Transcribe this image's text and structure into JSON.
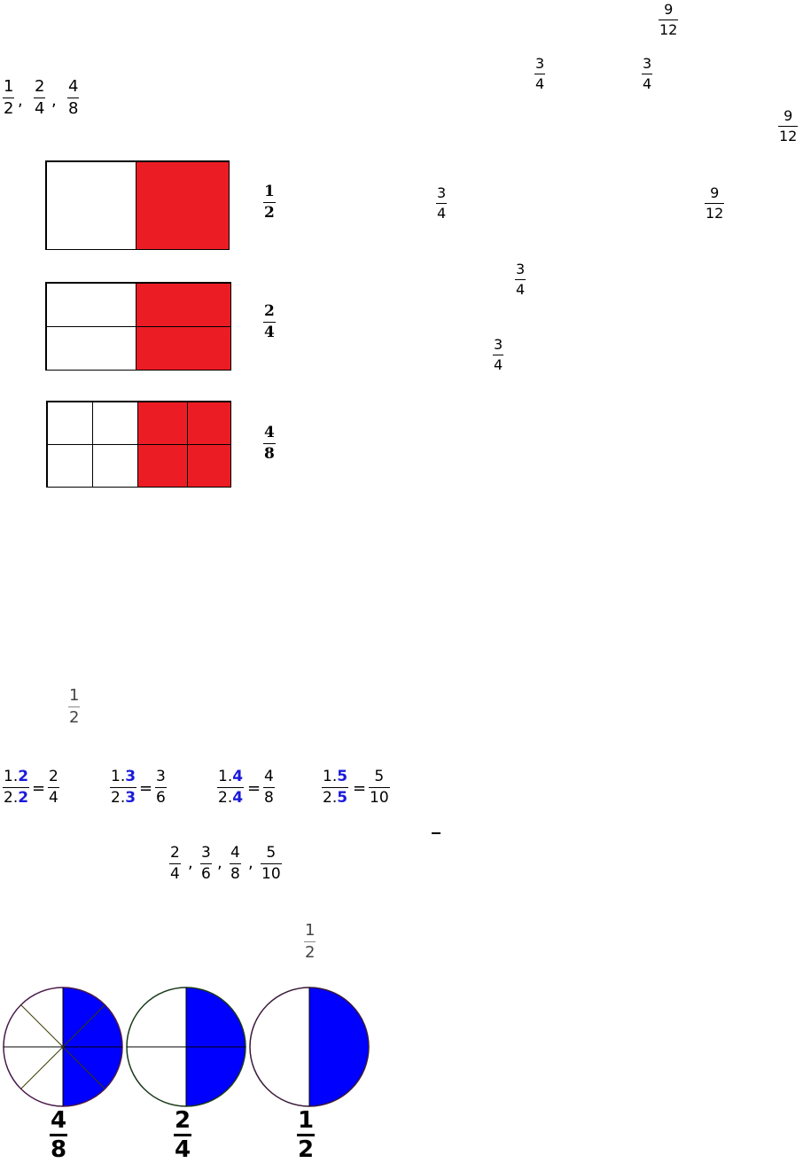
{
  "top_fractions": [
    {
      "n": "9",
      "d": "12"
    },
    {
      "n": "3",
      "d": "4"
    },
    {
      "n": "3",
      "d": "4"
    },
    {
      "n": "9",
      "d": "12"
    },
    {
      "n": "3",
      "d": "4"
    },
    {
      "n": "9",
      "d": "12"
    },
    {
      "n": "3",
      "d": "4"
    },
    {
      "n": "3",
      "d": "4"
    }
  ],
  "intro_list": [
    {
      "n": "1",
      "d": "2"
    },
    {
      "n": "2",
      "d": "4"
    },
    {
      "n": "4",
      "d": "8"
    }
  ],
  "separator": ",",
  "rect_labels": [
    {
      "n": "1",
      "d": "2"
    },
    {
      "n": "2",
      "d": "4"
    },
    {
      "n": "4",
      "d": "8"
    }
  ],
  "half": {
    "n": "1",
    "d": "2"
  },
  "equations": [
    {
      "n1": "1.",
      "n2": "2",
      "d1": "2.",
      "d2": "2",
      "eq": "=",
      "rn": "2",
      "rd": "4"
    },
    {
      "n1": "1.",
      "n2": "3",
      "d1": "2.",
      "d2": "3",
      "eq": "=",
      "rn": "3",
      "rd": "6"
    },
    {
      "n1": "1.",
      "n2": "4",
      "d1": "2.",
      "d2": "4",
      "eq": "=",
      "rn": "4",
      "rd": "8"
    },
    {
      "n1": "1.",
      "n2": "5",
      "d1": "2.",
      "d2": "5",
      "eq": "=",
      "rn": "5",
      "rd": "10"
    }
  ],
  "equivalent_list": [
    {
      "n": "2",
      "d": "4"
    },
    {
      "n": "3",
      "d": "6"
    },
    {
      "n": "4",
      "d": "8"
    },
    {
      "n": "5",
      "d": "10"
    }
  ],
  "half_again": {
    "n": "1",
    "d": "2"
  },
  "circle_labels": [
    {
      "n": "4",
      "d": "8"
    },
    {
      "n": "2",
      "d": "4"
    },
    {
      "n": "1",
      "d": "2"
    }
  ],
  "colors": {
    "red": "#ec1c24",
    "blue": "#0000ff"
  }
}
